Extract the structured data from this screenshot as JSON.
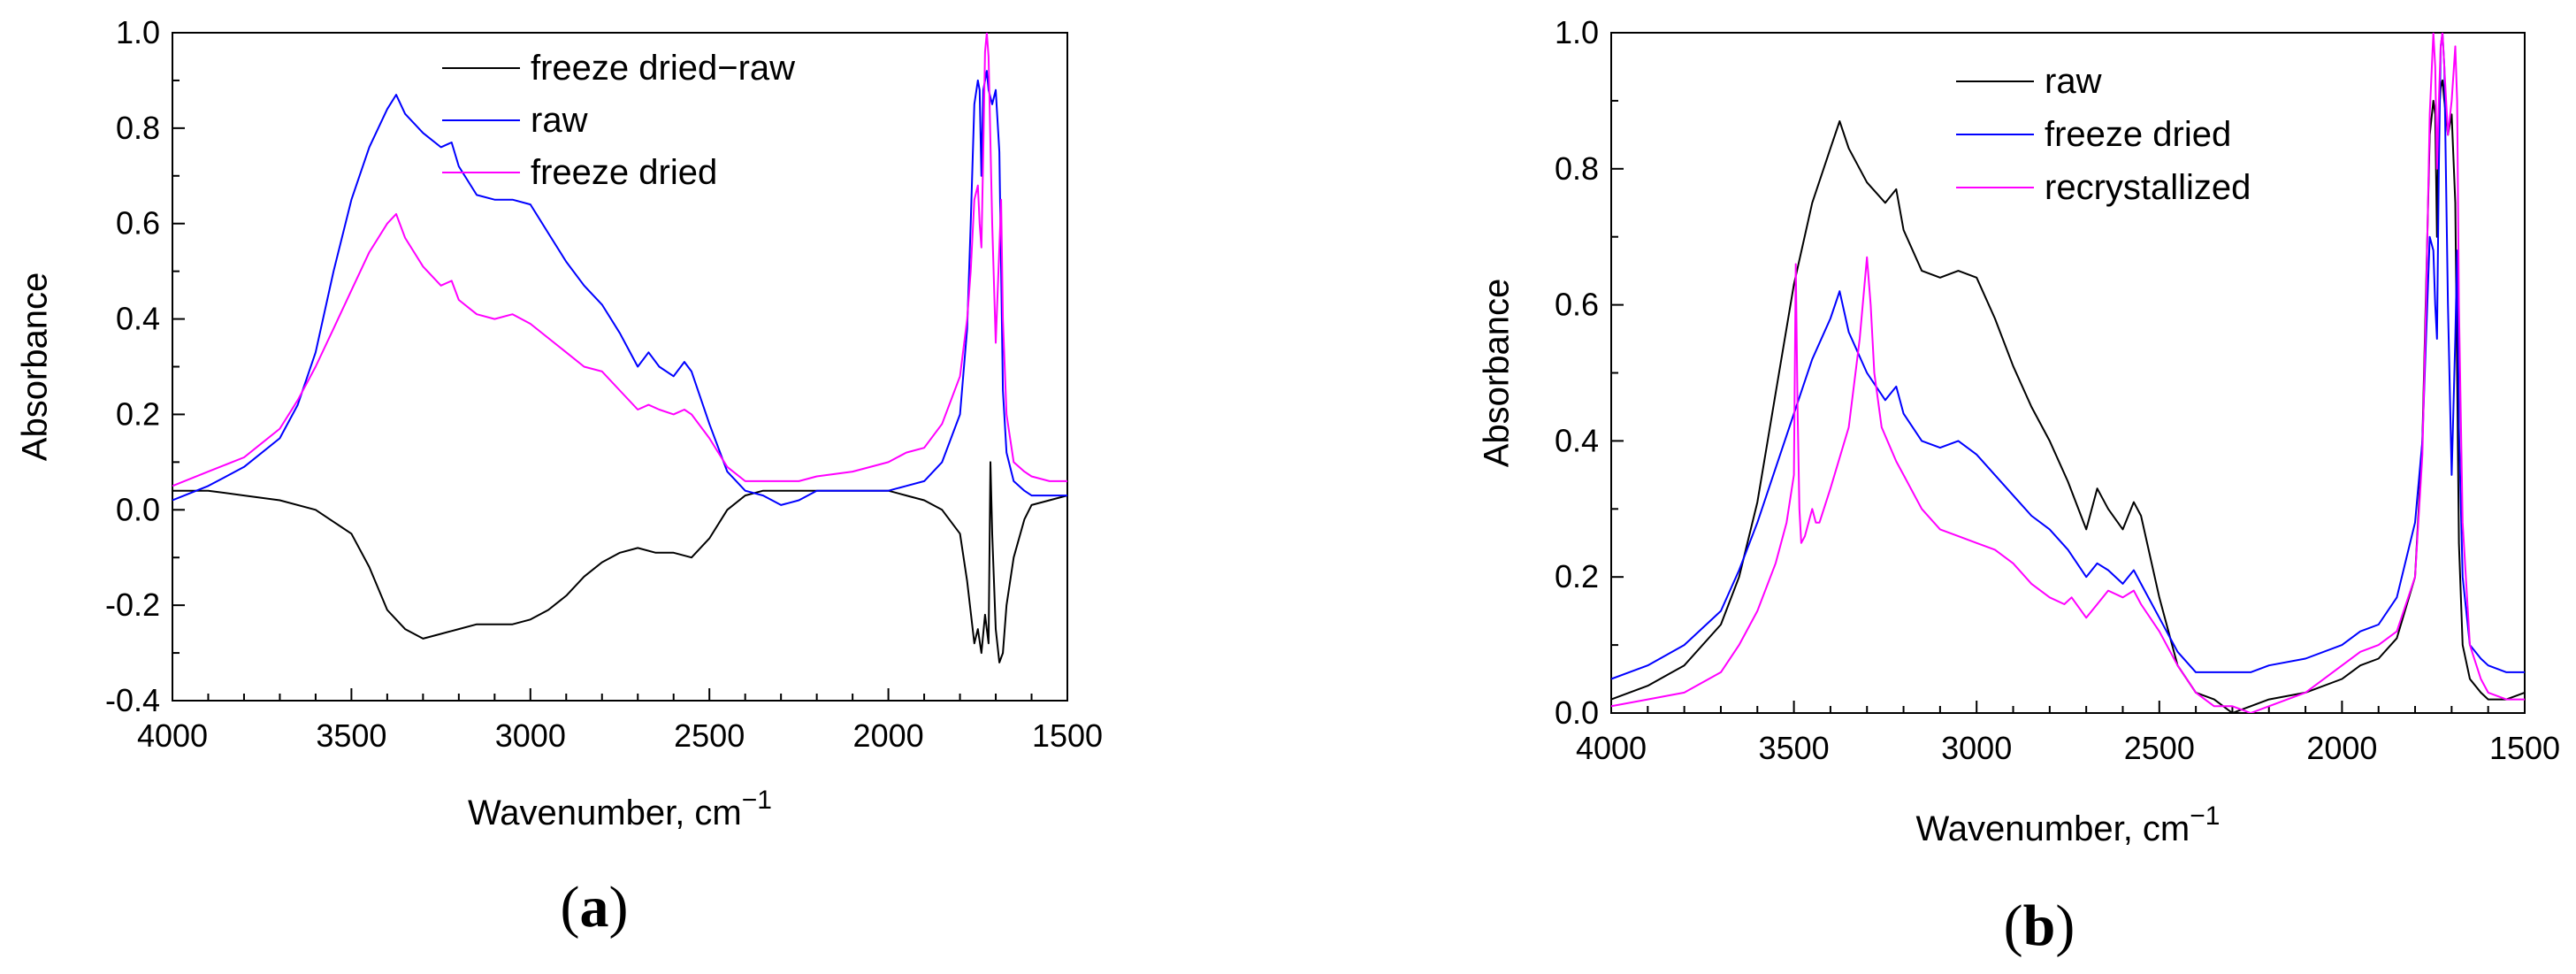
{
  "chart_data": [
    {
      "id": "a",
      "type": "line",
      "panel_label_open": "(",
      "panel_label_letter": "a",
      "panel_label_close": ")",
      "xlabel": "Wavenumber, cm",
      "xlabel_sup": "−1",
      "ylabel": "Absorbance",
      "xlim": [
        4000,
        1500
      ],
      "ylim": [
        -0.4,
        1.0
      ],
      "x_ticks": [
        4000,
        3500,
        3000,
        2500,
        2000,
        1500
      ],
      "x_tick_labels": [
        "4000",
        "3500",
        "3000",
        "2500",
        "2000",
        "1500"
      ],
      "y_ticks": [
        -0.4,
        -0.2,
        0.0,
        0.2,
        0.4,
        0.6,
        0.8,
        1.0
      ],
      "y_tick_labels": [
        "-0.4",
        "-0.2",
        "0.0",
        "0.2",
        "0.4",
        "0.6",
        "0.8",
        "1.0"
      ],
      "legend_position": "top-right",
      "series": [
        {
          "name": "freeze dried−raw",
          "color": "#000000",
          "x": [
            4000,
            3900,
            3800,
            3700,
            3600,
            3500,
            3450,
            3400,
            3375,
            3350,
            3300,
            3250,
            3200,
            3150,
            3100,
            3050,
            3000,
            2950,
            2900,
            2850,
            2800,
            2750,
            2700,
            2650,
            2600,
            2550,
            2500,
            2450,
            2400,
            2350,
            2300,
            2250,
            2200,
            2100,
            2000,
            1950,
            1900,
            1850,
            1800,
            1780,
            1760,
            1750,
            1740,
            1730,
            1720,
            1715,
            1710,
            1700,
            1690,
            1680,
            1670,
            1650,
            1620,
            1600,
            1550,
            1500
          ],
          "values": [
            0.04,
            0.04,
            0.03,
            0.02,
            0.0,
            -0.05,
            -0.12,
            -0.21,
            -0.23,
            -0.25,
            -0.27,
            -0.26,
            -0.25,
            -0.24,
            -0.24,
            -0.24,
            -0.23,
            -0.21,
            -0.18,
            -0.14,
            -0.11,
            -0.09,
            -0.08,
            -0.09,
            -0.09,
            -0.1,
            -0.06,
            0.0,
            0.03,
            0.04,
            0.04,
            0.04,
            0.04,
            0.04,
            0.04,
            0.03,
            0.02,
            0.0,
            -0.05,
            -0.15,
            -0.28,
            -0.25,
            -0.3,
            -0.22,
            -0.28,
            0.1,
            -0.05,
            -0.25,
            -0.32,
            -0.3,
            -0.2,
            -0.1,
            -0.02,
            0.01,
            0.02,
            0.03
          ]
        },
        {
          "name": "raw",
          "color": "#0000ff",
          "x": [
            4000,
            3900,
            3800,
            3700,
            3650,
            3600,
            3550,
            3500,
            3450,
            3400,
            3375,
            3350,
            3300,
            3250,
            3220,
            3200,
            3150,
            3100,
            3050,
            3000,
            2950,
            2900,
            2850,
            2800,
            2750,
            2700,
            2670,
            2640,
            2600,
            2570,
            2550,
            2500,
            2450,
            2400,
            2350,
            2300,
            2250,
            2200,
            2100,
            2000,
            1950,
            1900,
            1850,
            1800,
            1780,
            1770,
            1760,
            1750,
            1745,
            1740,
            1735,
            1730,
            1725,
            1720,
            1710,
            1700,
            1690,
            1685,
            1680,
            1670,
            1650,
            1620,
            1600,
            1550,
            1500
          ],
          "values": [
            0.02,
            0.05,
            0.09,
            0.15,
            0.22,
            0.33,
            0.5,
            0.65,
            0.76,
            0.84,
            0.87,
            0.83,
            0.79,
            0.76,
            0.77,
            0.72,
            0.66,
            0.65,
            0.65,
            0.64,
            0.58,
            0.52,
            0.47,
            0.43,
            0.37,
            0.3,
            0.33,
            0.3,
            0.28,
            0.31,
            0.29,
            0.18,
            0.08,
            0.04,
            0.03,
            0.01,
            0.02,
            0.04,
            0.04,
            0.04,
            0.05,
            0.06,
            0.1,
            0.2,
            0.38,
            0.6,
            0.85,
            0.9,
            0.88,
            0.7,
            0.88,
            0.9,
            0.92,
            0.88,
            0.85,
            0.88,
            0.75,
            0.5,
            0.25,
            0.12,
            0.06,
            0.04,
            0.03,
            0.03,
            0.03
          ]
        },
        {
          "name": "freeze dried",
          "color": "#ff00ff",
          "x": [
            4000,
            3900,
            3800,
            3700,
            3650,
            3600,
            3550,
            3500,
            3450,
            3400,
            3375,
            3350,
            3300,
            3250,
            3220,
            3200,
            3150,
            3100,
            3050,
            3000,
            2950,
            2900,
            2850,
            2800,
            2750,
            2700,
            2670,
            2640,
            2600,
            2570,
            2550,
            2500,
            2450,
            2400,
            2350,
            2300,
            2250,
            2200,
            2100,
            2000,
            1950,
            1900,
            1850,
            1800,
            1780,
            1770,
            1760,
            1750,
            1745,
            1740,
            1735,
            1730,
            1725,
            1720,
            1710,
            1700,
            1690,
            1685,
            1680,
            1670,
            1650,
            1620,
            1600,
            1550,
            1500
          ],
          "values": [
            0.05,
            0.08,
            0.11,
            0.17,
            0.23,
            0.3,
            0.38,
            0.46,
            0.54,
            0.6,
            0.62,
            0.57,
            0.51,
            0.47,
            0.48,
            0.44,
            0.41,
            0.4,
            0.41,
            0.39,
            0.36,
            0.33,
            0.3,
            0.29,
            0.25,
            0.21,
            0.22,
            0.21,
            0.2,
            0.21,
            0.2,
            0.15,
            0.09,
            0.06,
            0.06,
            0.06,
            0.06,
            0.07,
            0.08,
            0.1,
            0.12,
            0.13,
            0.18,
            0.28,
            0.4,
            0.5,
            0.65,
            0.68,
            0.6,
            0.55,
            0.75,
            0.96,
            1.0,
            0.95,
            0.6,
            0.35,
            0.55,
            0.65,
            0.4,
            0.2,
            0.1,
            0.08,
            0.07,
            0.06,
            0.06
          ]
        }
      ]
    },
    {
      "id": "b",
      "type": "line",
      "panel_label_open": "(",
      "panel_label_letter": "b",
      "panel_label_close": ")",
      "xlabel": "Wavenumber, cm",
      "xlabel_sup": "−1",
      "ylabel": "Absorbance",
      "xlim": [
        4000,
        1500
      ],
      "ylim": [
        0.0,
        1.0
      ],
      "x_ticks": [
        4000,
        3500,
        3000,
        2500,
        2000,
        1500
      ],
      "x_tick_labels": [
        "4000",
        "3500",
        "3000",
        "2500",
        "2000",
        "1500"
      ],
      "y_ticks": [
        0.0,
        0.2,
        0.4,
        0.6,
        0.8,
        1.0
      ],
      "y_tick_labels": [
        "0.0",
        "0.2",
        "0.4",
        "0.6",
        "0.8",
        "1.0"
      ],
      "legend_position": "top-right",
      "series": [
        {
          "name": "raw",
          "color": "#000000",
          "x": [
            4000,
            3900,
            3800,
            3700,
            3650,
            3600,
            3550,
            3500,
            3450,
            3400,
            3375,
            3350,
            3300,
            3250,
            3220,
            3200,
            3150,
            3100,
            3050,
            3000,
            2950,
            2900,
            2850,
            2800,
            2750,
            2700,
            2670,
            2640,
            2600,
            2570,
            2550,
            2500,
            2450,
            2400,
            2350,
            2300,
            2250,
            2200,
            2100,
            2000,
            1950,
            1900,
            1850,
            1800,
            1780,
            1770,
            1760,
            1750,
            1745,
            1740,
            1735,
            1730,
            1725,
            1720,
            1710,
            1700,
            1690,
            1685,
            1680,
            1670,
            1650,
            1620,
            1600,
            1550,
            1500
          ],
          "values": [
            0.02,
            0.04,
            0.07,
            0.13,
            0.2,
            0.31,
            0.47,
            0.63,
            0.75,
            0.83,
            0.87,
            0.83,
            0.78,
            0.75,
            0.77,
            0.71,
            0.65,
            0.64,
            0.65,
            0.64,
            0.58,
            0.51,
            0.45,
            0.4,
            0.34,
            0.27,
            0.33,
            0.3,
            0.27,
            0.31,
            0.29,
            0.17,
            0.07,
            0.03,
            0.02,
            0.0,
            0.01,
            0.02,
            0.03,
            0.05,
            0.07,
            0.08,
            0.11,
            0.2,
            0.4,
            0.62,
            0.85,
            0.9,
            0.88,
            0.7,
            0.88,
            0.92,
            0.93,
            0.9,
            0.85,
            0.88,
            0.75,
            0.5,
            0.25,
            0.1,
            0.05,
            0.03,
            0.02,
            0.02,
            0.03
          ]
        },
        {
          "name": "freeze dried",
          "color": "#0000ff",
          "x": [
            4000,
            3900,
            3800,
            3700,
            3650,
            3600,
            3550,
            3500,
            3450,
            3400,
            3375,
            3350,
            3300,
            3250,
            3220,
            3200,
            3150,
            3100,
            3050,
            3000,
            2950,
            2900,
            2850,
            2800,
            2750,
            2700,
            2670,
            2640,
            2600,
            2570,
            2550,
            2500,
            2450,
            2400,
            2350,
            2300,
            2250,
            2200,
            2100,
            2000,
            1950,
            1900,
            1850,
            1800,
            1780,
            1770,
            1760,
            1750,
            1745,
            1740,
            1735,
            1730,
            1725,
            1720,
            1710,
            1700,
            1690,
            1685,
            1680,
            1670,
            1650,
            1620,
            1600,
            1550,
            1500
          ],
          "values": [
            0.05,
            0.07,
            0.1,
            0.15,
            0.21,
            0.28,
            0.36,
            0.44,
            0.52,
            0.58,
            0.62,
            0.56,
            0.5,
            0.46,
            0.48,
            0.44,
            0.4,
            0.39,
            0.4,
            0.38,
            0.35,
            0.32,
            0.29,
            0.27,
            0.24,
            0.2,
            0.22,
            0.21,
            0.19,
            0.21,
            0.19,
            0.14,
            0.09,
            0.06,
            0.06,
            0.06,
            0.06,
            0.07,
            0.08,
            0.1,
            0.12,
            0.13,
            0.17,
            0.28,
            0.4,
            0.55,
            0.7,
            0.68,
            0.6,
            0.55,
            0.8,
            0.98,
            1.0,
            0.95,
            0.6,
            0.35,
            0.55,
            0.68,
            0.42,
            0.2,
            0.1,
            0.08,
            0.07,
            0.06,
            0.06
          ]
        },
        {
          "name": "recrystallized",
          "color": "#ff00ff",
          "x": [
            4000,
            3900,
            3800,
            3700,
            3650,
            3600,
            3550,
            3520,
            3500,
            3495,
            3490,
            3485,
            3480,
            3470,
            3450,
            3440,
            3430,
            3400,
            3350,
            3320,
            3300,
            3290,
            3280,
            3260,
            3220,
            3200,
            3150,
            3100,
            3050,
            3000,
            2950,
            2900,
            2850,
            2800,
            2760,
            2740,
            2700,
            2670,
            2640,
            2600,
            2570,
            2550,
            2500,
            2450,
            2400,
            2350,
            2300,
            2250,
            2200,
            2100,
            2000,
            1950,
            1900,
            1850,
            1800,
            1780,
            1770,
            1760,
            1750,
            1745,
            1740,
            1735,
            1730,
            1725,
            1720,
            1710,
            1700,
            1690,
            1685,
            1680,
            1670,
            1650,
            1620,
            1600,
            1550,
            1500
          ],
          "values": [
            0.01,
            0.02,
            0.03,
            0.06,
            0.1,
            0.15,
            0.22,
            0.28,
            0.35,
            0.66,
            0.45,
            0.3,
            0.25,
            0.26,
            0.3,
            0.28,
            0.28,
            0.33,
            0.42,
            0.55,
            0.67,
            0.6,
            0.5,
            0.42,
            0.37,
            0.35,
            0.3,
            0.27,
            0.26,
            0.25,
            0.24,
            0.22,
            0.19,
            0.17,
            0.16,
            0.17,
            0.14,
            0.16,
            0.18,
            0.17,
            0.18,
            0.16,
            0.12,
            0.07,
            0.03,
            0.01,
            0.01,
            0.0,
            0.01,
            0.03,
            0.07,
            0.09,
            0.1,
            0.12,
            0.2,
            0.38,
            0.6,
            0.88,
            1.0,
            0.95,
            0.8,
            0.9,
            0.98,
            1.0,
            0.95,
            0.85,
            0.9,
            0.98,
            0.9,
            0.6,
            0.28,
            0.1,
            0.05,
            0.03,
            0.02,
            0.02
          ]
        }
      ]
    }
  ]
}
